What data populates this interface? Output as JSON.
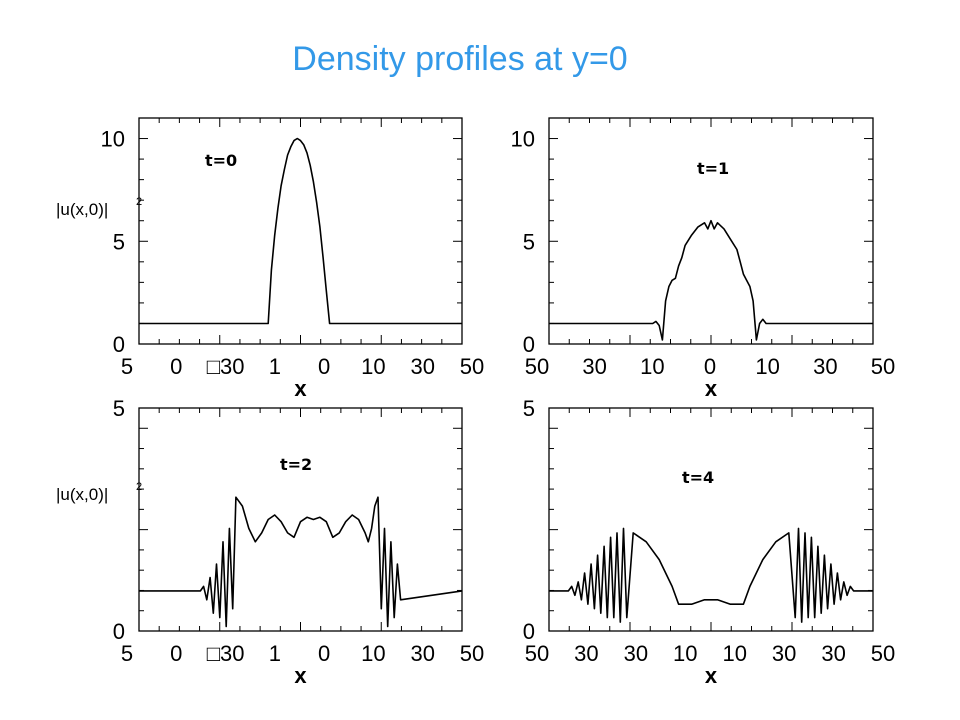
{
  "title": "Density profiles at y=0",
  "chart_data": [
    {
      "type": "line",
      "panel_label": "t=0",
      "xlabel": "x",
      "ylabel": "|u(x,0)|",
      "ylabel_superscript": "2",
      "x_tick_labels": [
        "5",
        "0",
        "□30",
        "1",
        "0",
        "10",
        "30",
        "50"
      ],
      "y_tick_labels": [
        "0",
        "5",
        "10"
      ],
      "xlim": [
        -50,
        50
      ],
      "ylim": [
        0,
        11
      ],
      "x": [
        -50,
        -10,
        -9,
        -8,
        -7,
        -6,
        -5,
        -4,
        -3,
        -2,
        -1,
        0,
        1,
        2,
        3,
        4,
        5,
        6,
        7,
        8,
        9,
        10,
        50
      ],
      "y": [
        1,
        1,
        3.6,
        5.3,
        6.6,
        7.7,
        8.5,
        9.2,
        9.6,
        9.9,
        10,
        9.9,
        9.7,
        9.3,
        8.7,
        7.9,
        6.9,
        5.7,
        4.2,
        2.6,
        1.0,
        1,
        1
      ]
    },
    {
      "type": "line",
      "panel_label": "t=1",
      "xlabel": "x",
      "ylabel": "",
      "x_tick_labels": [
        "50",
        "30",
        "10",
        "0",
        "10",
        "30",
        "50"
      ],
      "y_tick_labels": [
        "0",
        "5",
        "10"
      ],
      "xlim": [
        -50,
        50
      ],
      "ylim": [
        0,
        11
      ],
      "x": [
        -50,
        -18,
        -17,
        -16,
        -15,
        -14,
        -13,
        -12,
        -11,
        -10,
        -9,
        -8,
        -6,
        -4,
        -2,
        -1,
        0,
        1,
        2,
        4,
        6,
        8,
        9,
        10,
        11,
        12,
        13,
        14,
        15,
        16,
        17,
        18,
        50
      ],
      "y": [
        1,
        1,
        1.1,
        0.9,
        0.2,
        2.1,
        2.8,
        3.1,
        3.2,
        3.8,
        4.2,
        4.8,
        5.3,
        5.7,
        5.9,
        5.6,
        6.0,
        5.6,
        5.9,
        5.6,
        5.1,
        4.6,
        4.0,
        3.4,
        3.1,
        2.8,
        2.1,
        0.2,
        1.0,
        1.2,
        1.0,
        1,
        1
      ]
    },
    {
      "type": "line",
      "panel_label": "t=2",
      "xlabel": "x",
      "ylabel": "|u(x,0)|",
      "ylabel_superscript": "2",
      "x_tick_labels": [
        "5",
        "0",
        "□30",
        "1",
        "0",
        "10",
        "30",
        "50"
      ],
      "y_tick_labels": [
        "0",
        "5"
      ],
      "xlim": [
        -50,
        50
      ],
      "ylim": [
        0,
        5
      ],
      "x": [
        -50,
        -31,
        -30,
        -29,
        -28,
        -27,
        -26,
        -25,
        -24,
        -23,
        -22,
        -21,
        -20,
        -18,
        -16,
        -14,
        -12,
        -10,
        -8,
        -6,
        -4,
        -2,
        0,
        2,
        4,
        6,
        8,
        10,
        12,
        14,
        16,
        18,
        20,
        21,
        22,
        23,
        24,
        25,
        26,
        27,
        28,
        29,
        30,
        31,
        50
      ],
      "y": [
        0.9,
        0.9,
        1.0,
        0.7,
        1.2,
        0.4,
        1.5,
        0.3,
        2.0,
        0.1,
        2.3,
        0.5,
        3.0,
        2.8,
        2.3,
        2.0,
        2.2,
        2.5,
        2.6,
        2.45,
        2.2,
        2.1,
        2.45,
        2.55,
        2.5,
        2.55,
        2.45,
        2.1,
        2.2,
        2.45,
        2.6,
        2.5,
        2.2,
        2.0,
        2.3,
        2.8,
        3.0,
        0.5,
        2.3,
        0.1,
        2.0,
        0.3,
        1.5,
        0.7,
        0.9
      ]
    },
    {
      "type": "line",
      "panel_label": "t=4",
      "xlabel": "x",
      "ylabel": "",
      "x_tick_labels": [
        "50",
        "30",
        "30",
        "10",
        "10",
        "30",
        "30",
        "50"
      ],
      "y_tick_labels": [
        "0",
        "5"
      ],
      "xlim": [
        -50,
        50
      ],
      "ylim": [
        0,
        5
      ],
      "x": [
        -50,
        -44,
        -43,
        -42,
        -41,
        -40,
        -39,
        -38,
        -37,
        -36,
        -35,
        -34,
        -33,
        -32,
        -31,
        -30,
        -29,
        -28,
        -27,
        -26,
        -24,
        -20,
        -16,
        -12,
        -10,
        -6,
        -2,
        0,
        2,
        6,
        10,
        12,
        16,
        20,
        24,
        26,
        27,
        28,
        29,
        30,
        31,
        32,
        33,
        34,
        35,
        36,
        37,
        38,
        39,
        40,
        41,
        42,
        43,
        44,
        50
      ],
      "y": [
        0.9,
        0.9,
        1.0,
        0.8,
        1.1,
        0.7,
        1.3,
        0.6,
        1.5,
        0.5,
        1.7,
        0.4,
        1.9,
        0.3,
        2.1,
        0.3,
        2.2,
        0.2,
        2.3,
        0.3,
        2.2,
        2.0,
        1.6,
        1.0,
        0.6,
        0.6,
        0.7,
        0.7,
        0.7,
        0.6,
        0.6,
        1.0,
        1.6,
        2.0,
        2.2,
        0.3,
        2.3,
        0.2,
        2.2,
        0.3,
        2.1,
        0.3,
        1.9,
        0.4,
        1.7,
        0.5,
        1.5,
        0.6,
        1.3,
        0.7,
        1.1,
        0.8,
        1.0,
        0.9,
        0.9
      ]
    }
  ]
}
